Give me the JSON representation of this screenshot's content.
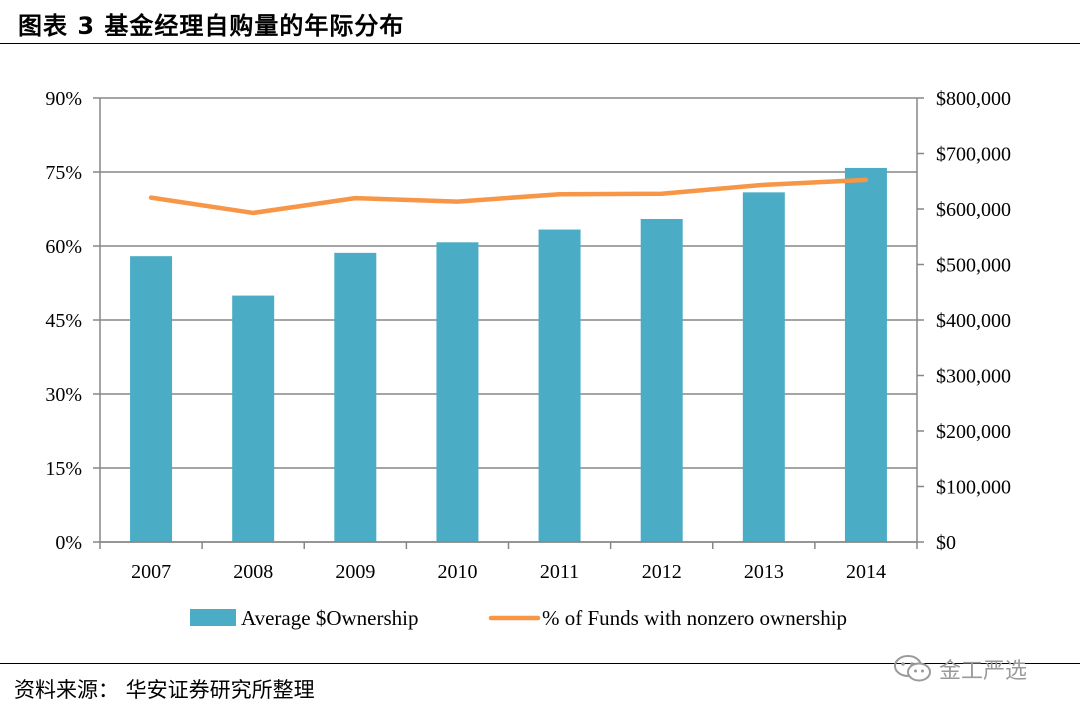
{
  "header": {
    "title": "图表 3 基金经理自购量的年际分布"
  },
  "footer": {
    "source": "资料来源： 华安证券研究所整理"
  },
  "watermark": {
    "text": "金工严选",
    "icon": "wechat-icon"
  },
  "colors": {
    "bar": "#4bacc6",
    "line": "#f79646",
    "grid": "#878787",
    "axis": "#878787"
  },
  "chart_data": {
    "type": "bar",
    "categories": [
      "2007",
      "2008",
      "2009",
      "2010",
      "2011",
      "2012",
      "2013",
      "2014"
    ],
    "series": [
      {
        "name": "Average $Ownership",
        "type": "bar",
        "axis": "right",
        "values": [
          515000,
          444000,
          521000,
          540000,
          563000,
          582000,
          630000,
          674000
        ]
      },
      {
        "name": "% of Funds with nonzero ownership",
        "type": "line",
        "axis": "left",
        "values": [
          0.698,
          0.667,
          0.697,
          0.69,
          0.705,
          0.706,
          0.724,
          0.734
        ]
      }
    ],
    "left_axis": {
      "ylim": [
        0,
        0.9
      ],
      "ticks": [
        "0%",
        "15%",
        "30%",
        "45%",
        "60%",
        "75%",
        "90%"
      ]
    },
    "right_axis": {
      "ylim": [
        0,
        800000
      ],
      "ticks": [
        "$0",
        "$100,000",
        "$200,000",
        "$300,000",
        "$400,000",
        "$500,000",
        "$600,000",
        "$700,000",
        "$800,000"
      ]
    },
    "legend": {
      "position": "bottom",
      "entries": [
        "Average $Ownership",
        "% of Funds with nonzero ownership"
      ]
    },
    "grid": true
  }
}
